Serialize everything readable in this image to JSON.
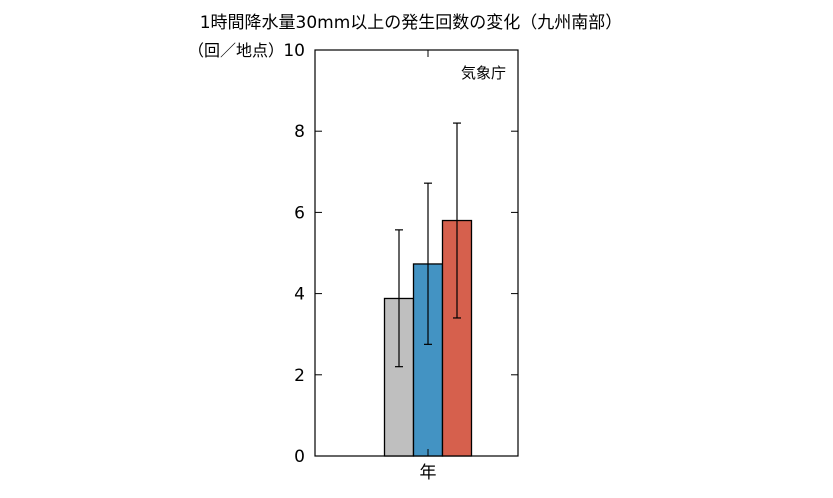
{
  "chart_data": {
    "type": "bar",
    "title": "1時間降水量30mm以上の発生回数の変化（九州南部）",
    "ylabel": "（回／地点）",
    "source_note": "気象庁",
    "categories": [
      "年"
    ],
    "ylim": [
      0,
      10
    ],
    "yticks": [
      0,
      2,
      4,
      6,
      8,
      10
    ],
    "grid": false,
    "series": [
      {
        "values": [
          3.88
        ],
        "error_low": [
          2.2
        ],
        "error_high": [
          5.57
        ],
        "color": "#bfbfbf"
      },
      {
        "values": [
          4.73
        ],
        "error_low": [
          2.75
        ],
        "error_high": [
          6.72
        ],
        "color": "#4393c3"
      },
      {
        "values": [
          5.8
        ],
        "error_low": [
          3.4
        ],
        "error_high": [
          8.2
        ],
        "color": "#d6604d"
      }
    ]
  }
}
